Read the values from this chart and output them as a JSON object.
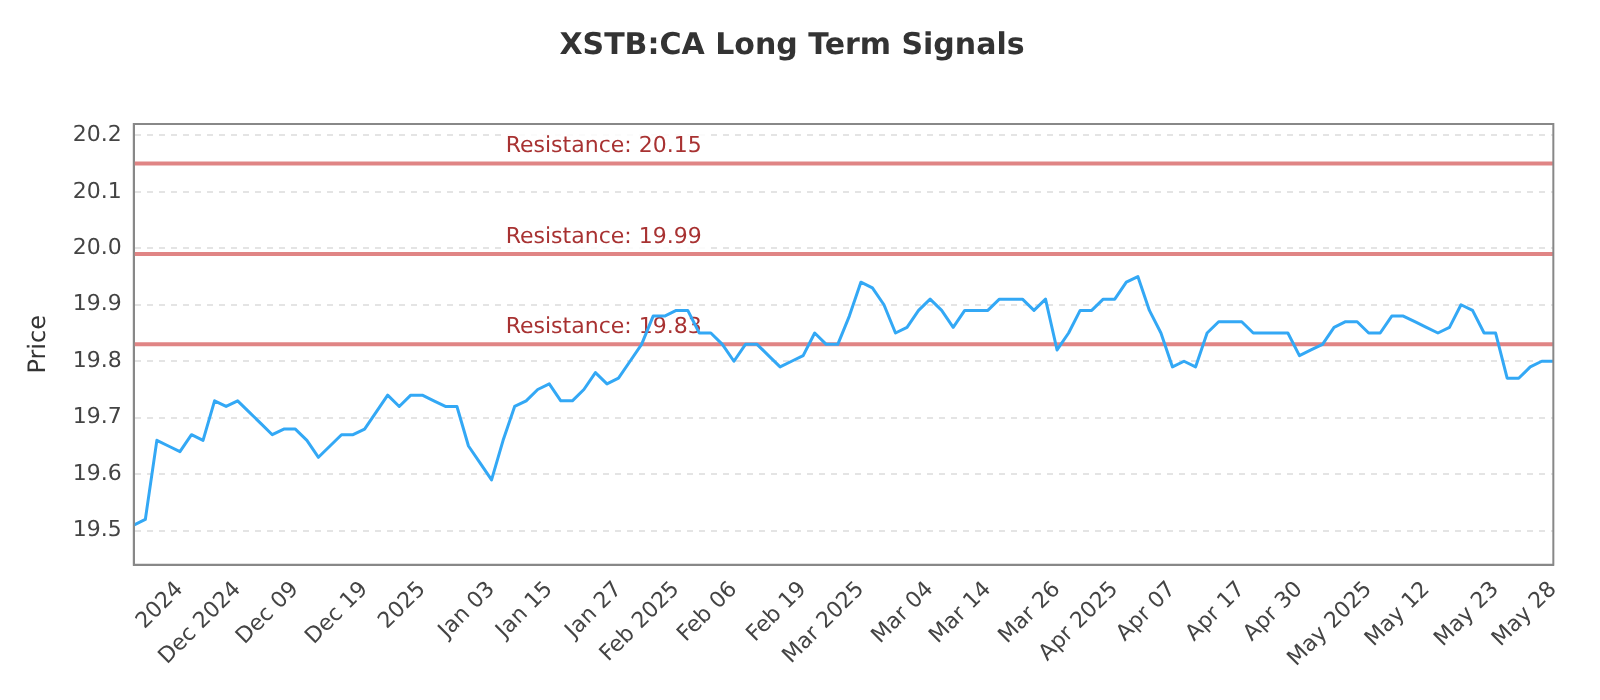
{
  "chart_data": {
    "type": "line",
    "title": "XSTB:CA Long Term Signals",
    "ylabel": "Price",
    "categories": [
      null,
      null,
      null,
      null,
      "2024",
      null,
      null,
      null,
      null,
      "Dec 2024",
      null,
      null,
      null,
      null,
      "Dec 09",
      null,
      null,
      null,
      null,
      null,
      "Dec 19",
      null,
      null,
      null,
      null,
      "2025",
      null,
      null,
      null,
      null,
      null,
      "Jan 03",
      null,
      null,
      null,
      null,
      "Jan 15",
      null,
      null,
      null,
      null,
      null,
      "Jan 27",
      null,
      null,
      null,
      null,
      "Feb 2025",
      null,
      null,
      null,
      null,
      "Feb 06",
      null,
      null,
      null,
      null,
      null,
      "Feb 19",
      null,
      null,
      null,
      null,
      "Mar 2025",
      null,
      null,
      null,
      null,
      null,
      "Mar 04",
      null,
      null,
      null,
      null,
      "Mar 14",
      null,
      null,
      null,
      null,
      null,
      "Mar 26",
      null,
      null,
      null,
      null,
      "Apr 2025",
      null,
      null,
      null,
      null,
      "Apr 07",
      null,
      null,
      null,
      null,
      null,
      "Apr 17",
      null,
      null,
      null,
      null,
      "Apr 30",
      null,
      null,
      null,
      null,
      null,
      "May 2025",
      null,
      null,
      null,
      null,
      "May 12",
      null,
      null,
      null,
      null,
      null,
      "May 23",
      null,
      null,
      null,
      null,
      "May 28"
    ],
    "series": [
      {
        "color": "#33a8f5",
        "values": [
          19.51,
          19.52,
          19.66,
          19.65,
          19.64,
          19.67,
          19.66,
          19.73,
          19.72,
          19.73,
          19.71,
          19.69,
          19.67,
          19.68,
          19.68,
          19.66,
          19.63,
          19.65,
          19.67,
          19.67,
          19.68,
          19.71,
          19.74,
          19.72,
          19.74,
          19.74,
          19.73,
          19.72,
          19.72,
          19.65,
          19.62,
          19.59,
          19.66,
          19.72,
          19.73,
          19.75,
          19.76,
          19.73,
          19.73,
          19.75,
          19.78,
          19.76,
          19.77,
          19.8,
          19.83,
          19.88,
          19.88,
          19.89,
          19.89,
          19.85,
          19.85,
          19.83,
          19.8,
          19.83,
          19.83,
          19.81,
          19.79,
          19.8,
          19.81,
          19.85,
          19.83,
          19.83,
          19.88,
          19.94,
          19.93,
          19.9,
          19.85,
          19.86,
          19.89,
          19.91,
          19.89,
          19.86,
          19.89,
          19.89,
          19.89,
          19.91,
          19.91,
          19.91,
          19.89,
          19.91,
          19.82,
          19.85,
          19.89,
          19.89,
          19.91,
          19.91,
          19.94,
          19.95,
          19.89,
          19.85,
          19.79,
          19.8,
          19.79,
          19.85,
          19.87,
          19.87,
          19.87,
          19.85,
          19.85,
          19.85,
          19.85,
          19.81,
          19.82,
          19.83,
          19.86,
          19.87,
          19.87,
          19.85,
          19.85,
          19.88,
          19.88,
          19.87,
          19.86,
          19.85,
          19.86,
          19.9,
          19.89,
          19.85,
          19.85,
          19.77,
          19.77,
          19.79,
          19.8,
          19.8
        ]
      }
    ],
    "ylim": [
      19.44,
      20.22
    ],
    "yticks": [
      19.5,
      19.6,
      19.7,
      19.8,
      19.9,
      {
        "value": 20,
        "label": "20.0"
      },
      20.1,
      20.2
    ],
    "ref_lines": [
      {
        "axis": "y",
        "value": 20.15,
        "label": "Resistance: 20.15",
        "color": "#e08585"
      },
      {
        "axis": "y",
        "value": 19.99,
        "label": "Resistance: 19.99",
        "color": "#e08585"
      },
      {
        "axis": "y",
        "value": 19.83,
        "label": "Resistance: 19.83",
        "color": "#e08585"
      }
    ],
    "grid": "y",
    "legend": false,
    "marker": "none",
    "line_style": "solid"
  }
}
